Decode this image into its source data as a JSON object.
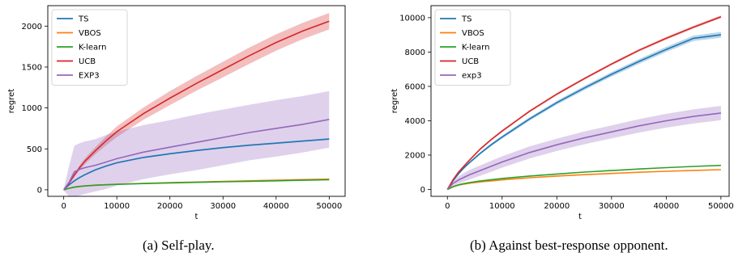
{
  "figure": {
    "caption_a": "(a) Self-play.",
    "caption_b": "(b) Against best-response opponent."
  },
  "chart_data": [
    {
      "type": "line",
      "title": "",
      "xlabel": "t",
      "ylabel": "regret",
      "xlim": [
        -3000,
        53000
      ],
      "ylim": [
        -80,
        2250
      ],
      "xticks": [
        0,
        10000,
        20000,
        30000,
        40000,
        50000
      ],
      "yticks": [
        0,
        500,
        1000,
        1500,
        2000
      ],
      "grid": false,
      "legend": "top-left",
      "x": [
        0,
        1000,
        2000,
        3000,
        4000,
        6000,
        8000,
        10000,
        15000,
        20000,
        25000,
        30000,
        35000,
        40000,
        45000,
        50000
      ],
      "series": [
        {
          "name": "TS",
          "color": "#1f77b4",
          "values": [
            0,
            60,
            110,
            150,
            185,
            245,
            290,
            330,
            395,
            440,
            480,
            515,
            545,
            570,
            595,
            620
          ],
          "band": [
            5,
            8,
            10,
            10,
            10,
            10,
            10,
            10,
            10,
            10,
            10,
            10,
            10,
            10,
            10,
            10
          ]
        },
        {
          "name": "VBOS",
          "color": "#ff7f0e",
          "values": [
            0,
            20,
            35,
            42,
            48,
            57,
            63,
            68,
            78,
            87,
            95,
            102,
            110,
            117,
            124,
            130
          ],
          "band": [
            2,
            3,
            4,
            5,
            5,
            5,
            5,
            5,
            5,
            5,
            5,
            5,
            5,
            5,
            5,
            5
          ]
        },
        {
          "name": "K-learn",
          "color": "#2ca02c",
          "values": [
            0,
            18,
            32,
            40,
            46,
            55,
            61,
            66,
            76,
            84,
            91,
            98,
            104,
            110,
            116,
            122
          ],
          "band": [
            2,
            3,
            4,
            5,
            5,
            5,
            5,
            5,
            5,
            5,
            5,
            5,
            5,
            5,
            5,
            5
          ]
        },
        {
          "name": "UCB",
          "color": "#d62728",
          "values": [
            0,
            80,
            180,
            270,
            350,
            480,
            600,
            710,
            930,
            1120,
            1300,
            1470,
            1640,
            1800,
            1940,
            2060
          ],
          "band": [
            5,
            10,
            20,
            30,
            35,
            45,
            55,
            65,
            75,
            85,
            90,
            95,
            100,
            100,
            100,
            100
          ]
        },
        {
          "name": "EXP3",
          "color": "#9467bd",
          "values": [
            0,
            90,
            220,
            250,
            270,
            300,
            340,
            380,
            460,
            520,
            580,
            640,
            700,
            750,
            800,
            860
          ],
          "band": [
            10,
            200,
            320,
            320,
            320,
            320,
            330,
            330,
            330,
            330,
            340,
            340,
            340,
            345,
            345,
            345
          ]
        }
      ]
    },
    {
      "type": "line",
      "title": "",
      "xlabel": "t",
      "ylabel": "regret",
      "xlim": [
        -3000,
        51500
      ],
      "ylim": [
        -400,
        10700
      ],
      "xticks": [
        0,
        10000,
        20000,
        30000,
        40000,
        50000
      ],
      "yticks": [
        0,
        2000,
        4000,
        6000,
        8000,
        10000
      ],
      "grid": false,
      "legend": "top-left",
      "x": [
        0,
        1000,
        2000,
        3000,
        4000,
        6000,
        8000,
        10000,
        15000,
        20000,
        25000,
        30000,
        35000,
        40000,
        45000,
        50000
      ],
      "series": [
        {
          "name": "TS",
          "color": "#1f77b4",
          "values": [
            0,
            500,
            900,
            1250,
            1550,
            2100,
            2600,
            3050,
            4100,
            5050,
            5900,
            6700,
            7450,
            8150,
            8800,
            9000
          ],
          "band": [
            10,
            20,
            40,
            50,
            60,
            70,
            80,
            90,
            100,
            110,
            120,
            130,
            140,
            150,
            160,
            170
          ]
        },
        {
          "name": "VBOS",
          "color": "#ff7f0e",
          "values": [
            0,
            150,
            250,
            310,
            360,
            440,
            500,
            560,
            680,
            780,
            860,
            930,
            1000,
            1060,
            1110,
            1150
          ],
          "band": [
            5,
            10,
            10,
            15,
            15,
            15,
            15,
            15,
            15,
            15,
            15,
            15,
            15,
            15,
            15,
            15
          ]
        },
        {
          "name": "K-learn",
          "color": "#2ca02c",
          "values": [
            0,
            160,
            270,
            340,
            400,
            490,
            570,
            640,
            780,
            900,
            1010,
            1100,
            1190,
            1270,
            1340,
            1400
          ],
          "band": [
            5,
            10,
            10,
            15,
            15,
            15,
            15,
            15,
            15,
            15,
            15,
            15,
            15,
            15,
            15,
            15
          ]
        },
        {
          "name": "UCB",
          "color": "#d62728",
          "values": [
            0,
            550,
            1000,
            1350,
            1700,
            2350,
            2900,
            3400,
            4550,
            5550,
            6450,
            7300,
            8100,
            8800,
            9450,
            10050
          ],
          "band": [
            10,
            20,
            30,
            40,
            50,
            60,
            60,
            60,
            60,
            70,
            70,
            70,
            70,
            80,
            80,
            80
          ]
        },
        {
          "name": "exp3",
          "color": "#9467bd",
          "values": [
            0,
            350,
            550,
            700,
            850,
            1100,
            1350,
            1600,
            2150,
            2600,
            3000,
            3350,
            3700,
            4000,
            4250,
            4450
          ],
          "band": [
            20,
            150,
            200,
            250,
            280,
            300,
            320,
            330,
            350,
            360,
            370,
            380,
            390,
            400,
            410,
            420
          ]
        }
      ]
    }
  ]
}
